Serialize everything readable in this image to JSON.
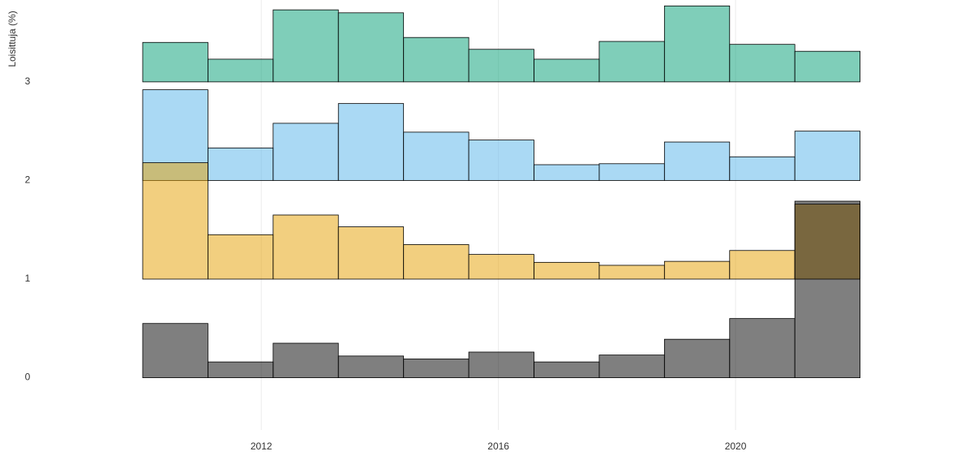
{
  "chart_data": {
    "type": "ridgeline-histogram",
    "y_label": "Loisittuja (%)",
    "bins": [
      2008.9,
      2010.0,
      2011.1,
      2012.2,
      2013.3,
      2014.4,
      2015.5,
      2016.6,
      2017.7,
      2018.8,
      2019.9,
      2021.0,
      2022.1,
      2023.2
    ],
    "series": [
      {
        "color": "#000000",
        "values": [
          0,
          0.55,
          0.16,
          0.35,
          0.22,
          0.19,
          0.26,
          0.16,
          0.23,
          0.39,
          0.6,
          1.79,
          0
        ]
      },
      {
        "color": "#E69F00",
        "values": [
          0,
          1.18,
          0.45,
          0.65,
          0.53,
          0.35,
          0.25,
          0.17,
          0.14,
          0.18,
          0.29,
          0.76,
          0
        ]
      },
      {
        "color": "#56B4E9",
        "values": [
          0,
          0.92,
          0.33,
          0.58,
          0.78,
          0.49,
          0.41,
          0.16,
          0.17,
          0.39,
          0.24,
          0.5,
          0
        ]
      },
      {
        "color": "#009E73",
        "values": [
          0,
          0.4,
          0.23,
          0.73,
          0.7,
          0.45,
          0.33,
          0.23,
          0.41,
          0.77,
          0.38,
          0.31,
          0
        ]
      }
    ],
    "xlim": [
      2008.14,
      2023.87
    ],
    "xticks": [
      2012,
      2016,
      2020
    ],
    "ylim": [
      -0.53,
      3.83
    ],
    "yticks": [
      0,
      1,
      2,
      3
    ],
    "fill_opacity": 0.5,
    "grid": true
  }
}
